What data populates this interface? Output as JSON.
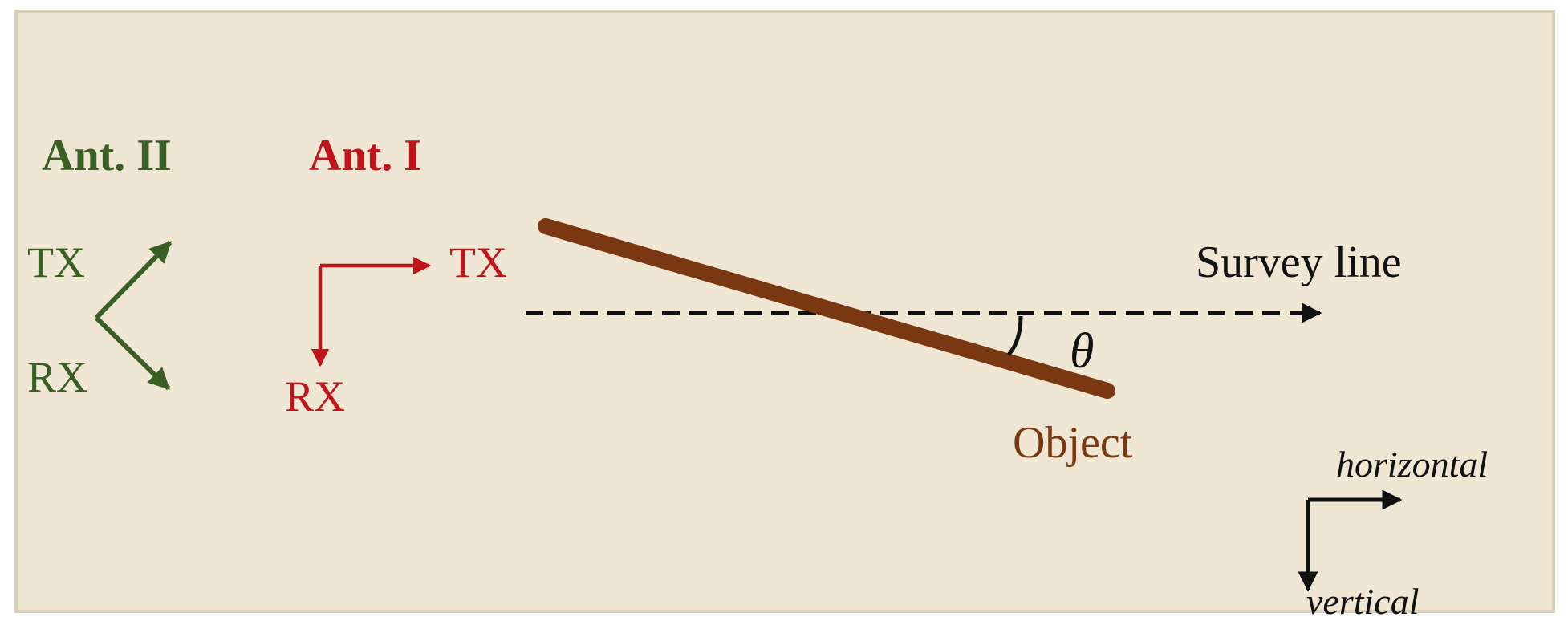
{
  "colors": {
    "background": "#efe6d4",
    "border": "#d8cfb6",
    "ant_ii": "#3a5f25",
    "ant_i": "#c0141b",
    "object": "#7a3812",
    "object_label": "#7a3812",
    "text": "#111111"
  },
  "ant_ii": {
    "title": "Ant. II",
    "tx": "TX",
    "rx": "RX"
  },
  "ant_i": {
    "title": "Ant. I",
    "tx": "TX",
    "rx": "RX"
  },
  "survey_line": {
    "label": "Survey line"
  },
  "object": {
    "label": "Object"
  },
  "angle": {
    "symbol": "θ"
  },
  "axes": {
    "horizontal": "horizontal",
    "vertical": "vertical"
  }
}
